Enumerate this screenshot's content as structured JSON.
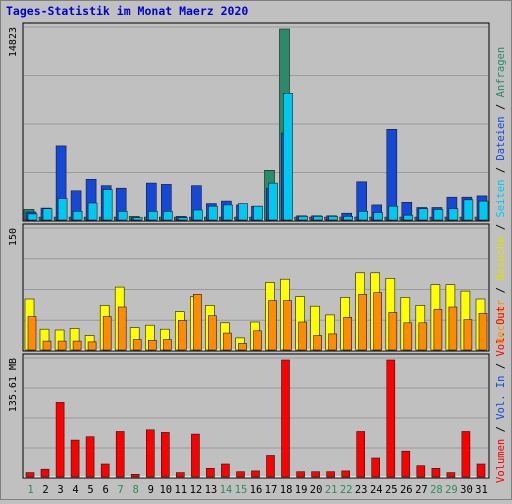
{
  "chart_data": {
    "type": "bar",
    "title": "Tages-Statistik im Monat Maerz 2020",
    "x": {
      "days": [
        1,
        2,
        3,
        4,
        5,
        6,
        7,
        8,
        9,
        10,
        11,
        12,
        13,
        14,
        15,
        16,
        17,
        18,
        19,
        20,
        21,
        22,
        23,
        24,
        25,
        26,
        27,
        28,
        29,
        30,
        31
      ],
      "weekend_days": [
        1,
        7,
        8,
        14,
        15,
        21,
        22,
        28,
        29
      ],
      "weekday_color": "#000000",
      "weekend_color": "#2e8b57"
    },
    "panels": {
      "top": {
        "ymax": 14823,
        "ymax_label": "14823",
        "series": [
          {
            "key": "anfragen",
            "name": "Anfragen",
            "color": "#2a8a6a",
            "values": [
              750,
              150,
              150,
              150,
              150,
              150,
              150,
              200,
              150,
              150,
              150,
              150,
              150,
              150,
              150,
              150,
              3800,
              14823,
              150,
              150,
              150,
              150,
              150,
              150,
              150,
              150,
              150,
              150,
              150,
              150,
              150
            ]
          },
          {
            "key": "dateien",
            "name": "Dateien",
            "color": "#1648d8",
            "values": [
              550,
              850,
              5700,
              2200,
              3100,
              2600,
              2400,
              100,
              2800,
              2700,
              200,
              2600,
              1200,
              1400,
              1100,
              1000,
              2400,
              6700,
              250,
              250,
              250,
              450,
              2900,
              1100,
              7000,
              1300,
              900,
              900,
              1700,
              1700,
              1800
            ]
          },
          {
            "key": "seiten",
            "name": "Seiten",
            "color": "#00c8f0",
            "values": [
              400,
              800,
              1600,
              600,
              1250,
              2300,
              600,
              100,
              600,
              600,
              100,
              700,
              1000,
              1100,
              1200,
              1000,
              2800,
              9800,
              200,
              200,
              200,
              200,
              600,
              500,
              1000,
              300,
              800,
              750,
              800,
              1500,
              1400
            ]
          }
        ]
      },
      "middle": {
        "ymax": 150,
        "ymax_label": "150",
        "series": [
          {
            "key": "besuche",
            "name": "Besuche",
            "color": "#ffff00",
            "values": [
              63,
              25,
              24,
              26,
              17,
              55,
              78,
              27,
              30,
              25,
              47,
              66,
              55,
              33,
              14,
              34,
              84,
              88,
              66,
              54,
              43,
              65,
              96,
              96,
              89,
              65,
              55,
              81,
              81,
              73,
              63
            ]
          },
          {
            "key": "rechner",
            "name": "Rechner",
            "color": "#ff8c00",
            "values": [
              41,
              10,
              10,
              10,
              9,
              41,
              53,
              12,
              11,
              12,
              36,
              69,
              42,
              20,
              7,
              23,
              61,
              61,
              34,
              17,
              19,
              40,
              69,
              71,
              46,
              33,
              33,
              50,
              53,
              37,
              45
            ]
          }
        ]
      },
      "bottom": {
        "ymax": 135.61,
        "ymax_label": "135.61 MB",
        "series": [
          {
            "key": "volumen",
            "name": "Volumen",
            "color": "#ff0000",
            "values": [
              4,
              8,
              86,
              42,
              46,
              14,
              52,
              2,
              54,
              51,
              4,
              49,
              9,
              14,
              5,
              6,
              24,
              135.61,
              5,
              5,
              5,
              6,
              52,
              21,
              135.61,
              29,
              12,
              9,
              4,
              52,
              14
            ]
          }
        ]
      }
    },
    "legend": {
      "placement": "right-vertical",
      "top_entries": [
        "Anfragen",
        "Dateien",
        "Seiten",
        "Besuche",
        "Rechner"
      ],
      "bottom_entries": [
        "Vol. Out",
        "Vol. In",
        "Volumen"
      ],
      "separator": " / "
    },
    "grid": true
  }
}
